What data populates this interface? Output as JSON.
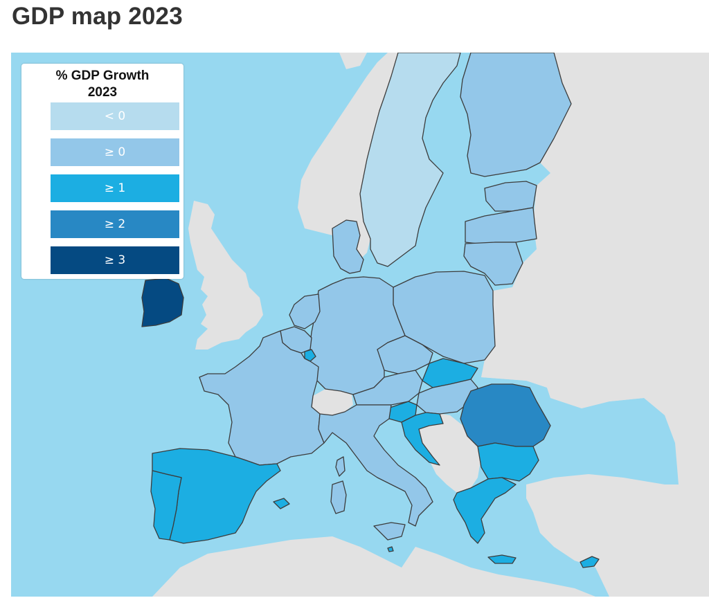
{
  "page": {
    "title": "GDP map 2023"
  },
  "legend": {
    "title_line1": "% GDP Growth",
    "title_line2": "2023",
    "classes": [
      {
        "label": "< 0",
        "color": "#b6dcee"
      },
      {
        "label": "≥ 0",
        "color": "#93c7e9"
      },
      {
        "label": "≥ 1",
        "color": "#1caee2"
      },
      {
        "label": "≥ 2",
        "color": "#2888c4"
      },
      {
        "label": "≥ 3",
        "color": "#054a82"
      }
    ]
  },
  "map": {
    "colors": {
      "sea": "#97d8f0",
      "non_member": "#e2e2e2",
      "border": "#3c3c3c"
    },
    "country_classes": {
      "sweden": "< 0",
      "finland": "≥ 0",
      "estonia": "≥ 0",
      "latvia": "≥ 0",
      "lithuania": "≥ 0",
      "denmark": "≥ 0",
      "netherlands": "≥ 0",
      "belgium": "≥ 0",
      "luxembourg": "≥ 1",
      "germany": "≥ 0",
      "poland": "≥ 0",
      "czechia": "≥ 0",
      "slovakia": "≥ 1",
      "austria": "≥ 0",
      "hungary": "≥ 0",
      "slovenia": "≥ 1",
      "croatia": "≥ 1",
      "romania": "≥ 2",
      "bulgaria": "≥ 1",
      "greece": "≥ 1",
      "cyprus": "≥ 1",
      "malta": "≥ 1",
      "italy": "≥ 0",
      "france": "≥ 0",
      "spain": "≥ 1",
      "portugal": "≥ 1",
      "ireland": "≥ 3"
    }
  }
}
